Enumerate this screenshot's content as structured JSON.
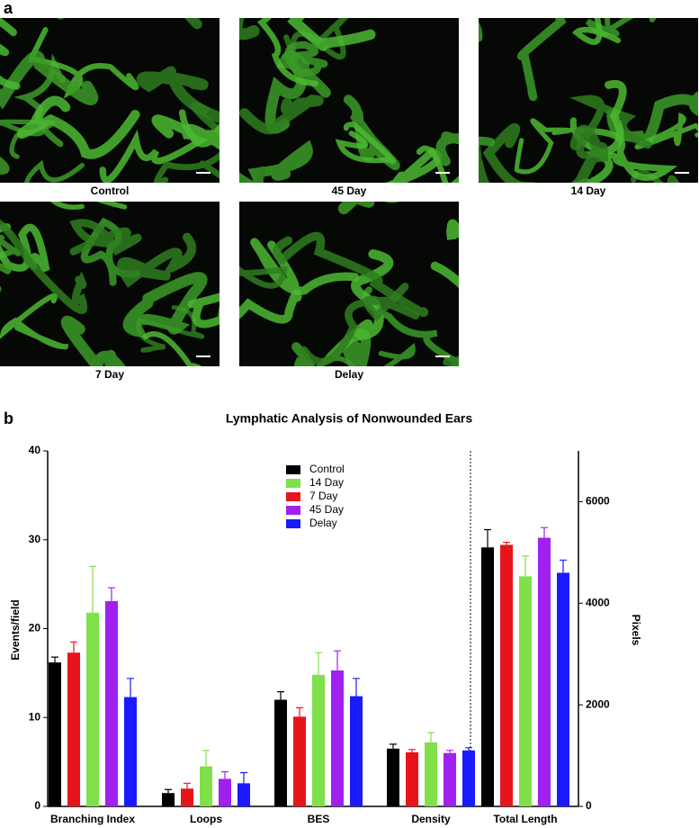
{
  "panel_a": {
    "label": "a",
    "images": [
      {
        "caption": "Control"
      },
      {
        "caption": "45 Day"
      },
      {
        "caption": "14 Day"
      },
      {
        "caption": "7 Day"
      },
      {
        "caption": "Delay"
      }
    ]
  },
  "panel_b_label": "b",
  "chart_data": [
    {
      "type": "bar",
      "title": "Lymphatic Analysis of Nonwounded Ears",
      "ylabel": "Events/field",
      "categories": [
        "Branching Index",
        "Loops",
        "BES",
        "Density"
      ],
      "ylim": [
        0,
        40
      ],
      "yticks": [
        0,
        10,
        20,
        30,
        40
      ],
      "legend_order": [
        0,
        2,
        1,
        3,
        4
      ],
      "series": [
        {
          "name": "Control",
          "color": "#000000",
          "values": [
            16.2,
            1.5,
            12.0,
            6.5
          ],
          "errors": [
            0.6,
            0.4,
            0.9,
            0.5
          ]
        },
        {
          "name": "7 Day",
          "color": "#e8141c",
          "values": [
            17.3,
            2.0,
            10.1,
            6.1
          ],
          "errors": [
            1.2,
            0.6,
            1.0,
            0.3
          ]
        },
        {
          "name": "14 Day",
          "color": "#7fe04a",
          "values": [
            21.8,
            4.5,
            14.8,
            7.2
          ],
          "errors": [
            5.2,
            1.8,
            2.5,
            1.1
          ]
        },
        {
          "name": "45 Day",
          "color": "#a020f0",
          "values": [
            23.1,
            3.1,
            15.3,
            6.0
          ],
          "errors": [
            1.5,
            0.8,
            2.2,
            0.3
          ]
        },
        {
          "name": "Delay",
          "color": "#1a1aff",
          "values": [
            12.3,
            2.6,
            12.4,
            6.3
          ],
          "errors": [
            2.1,
            1.2,
            2.0,
            0.3
          ]
        }
      ]
    },
    {
      "type": "bar",
      "ylabel": "Pixels",
      "categories": [
        "Total Length"
      ],
      "ylim": [
        0,
        7000
      ],
      "yticks": [
        0,
        2000,
        4000,
        6000
      ],
      "series": [
        {
          "color": "#000000",
          "values": [
            5100
          ],
          "errors": [
            350
          ]
        },
        {
          "color": "#e8141c",
          "values": [
            5150
          ],
          "errors": [
            50
          ]
        },
        {
          "color": "#7fe04a",
          "values": [
            4530
          ],
          "errors": [
            400
          ]
        },
        {
          "color": "#a020f0",
          "values": [
            5290
          ],
          "errors": [
            200
          ]
        },
        {
          "color": "#1a1aff",
          "values": [
            4600
          ],
          "errors": [
            250
          ]
        }
      ]
    }
  ]
}
